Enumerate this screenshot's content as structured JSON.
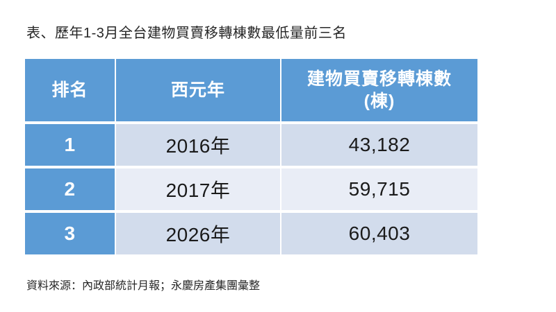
{
  "page": {
    "title": "表、歷年1-3月全台建物買賣移轉棟數最低量前三名",
    "source_note": "資料來源：內政部統計月報；永慶房產集團彙整"
  },
  "table": {
    "headers": [
      "排名",
      "西元年",
      "建物買賣移轉棟數\n(棟)"
    ],
    "rows": [
      {
        "rank": "1",
        "year": "2016年",
        "count": "43,182"
      },
      {
        "rank": "2",
        "year": "2017年",
        "count": "59,715"
      },
      {
        "rank": "3",
        "year": "2026年",
        "count": "60,403"
      }
    ]
  },
  "colors": {
    "header_bg": "#5B9BD5",
    "header_text": "#FFFFFF",
    "band_dark": "#D2DCEC",
    "band_light": "#E9EDF6",
    "body_text": "#1A1A1A"
  },
  "chart_data": {
    "type": "table",
    "title": "表、歷年1-3月全台建物買賣移轉棟數最低量前三名",
    "columns": [
      "排名",
      "西元年",
      "建物買賣移轉棟數(棟)"
    ],
    "rows": [
      [
        1,
        "2016年",
        43182
      ],
      [
        2,
        "2017年",
        59715
      ],
      [
        3,
        "2026年",
        60403
      ]
    ],
    "source": "資料來源：內政部統計月報；永慶房產集團彙整"
  }
}
